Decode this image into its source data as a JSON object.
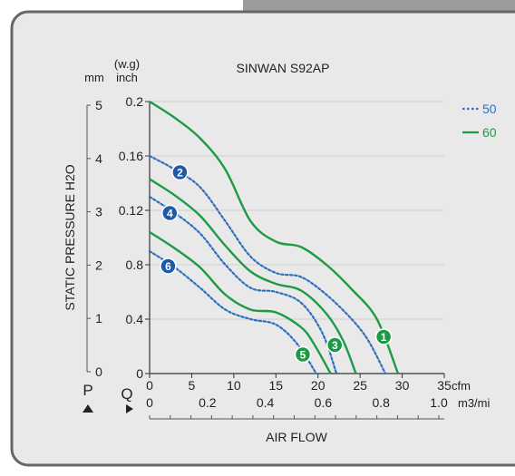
{
  "chart_data": {
    "type": "line",
    "title": "SINWAN S92AP",
    "xlabel": "AIR FLOW",
    "ylabel": "STATIC PRESSURE H2O",
    "x_unit": "cfm",
    "x_secondary_unit": "m3/mi",
    "y_unit_top": "(w.g)",
    "y_unit_left": "mm",
    "y_unit_right": "inch",
    "p_label": "P",
    "q_label": "Q",
    "xlim": [
      0,
      35
    ],
    "ylim": [
      0,
      0.2
    ],
    "x_ticks": [
      "0",
      "5",
      "10",
      "15",
      "20",
      "25",
      "30",
      "35"
    ],
    "x_secondary_ticks": [
      "0",
      "0.2",
      "0.4",
      "0.6",
      "0.8",
      "1.0"
    ],
    "y_inch_ticks": [
      "0",
      "0.4",
      "0.8",
      "0.12",
      "0.16",
      "0.2"
    ],
    "y_mm_ticks": [
      "0",
      "1",
      "2",
      "3",
      "4",
      "5"
    ],
    "grid": true,
    "legend_position": "right",
    "legend": [
      {
        "label": "50",
        "style": "dotted",
        "color": "#2e6fc0"
      },
      {
        "label": "60",
        "style": "solid",
        "color": "#1e9a46"
      }
    ],
    "series": [
      {
        "marker": "1",
        "freq": "60",
        "x": [
          0,
          3,
          6,
          9,
          12,
          15,
          18,
          21,
          24,
          27,
          29.5
        ],
        "y": [
          0.2,
          0.188,
          0.173,
          0.15,
          0.112,
          0.097,
          0.093,
          0.08,
          0.062,
          0.04,
          0.0
        ]
      },
      {
        "marker": "2",
        "freq": "50",
        "x": [
          0,
          3,
          6,
          9,
          12,
          15,
          18,
          21,
          24,
          26,
          28
        ],
        "y": [
          0.16,
          0.15,
          0.137,
          0.112,
          0.086,
          0.074,
          0.071,
          0.058,
          0.04,
          0.024,
          0.0
        ]
      },
      {
        "marker": "3",
        "freq": "60",
        "x": [
          0,
          3,
          6,
          9,
          12,
          15,
          18,
          21,
          23,
          24.5
        ],
        "y": [
          0.143,
          0.131,
          0.116,
          0.094,
          0.075,
          0.066,
          0.061,
          0.044,
          0.024,
          0.0
        ]
      },
      {
        "marker": "4",
        "freq": "50",
        "x": [
          0,
          3,
          6,
          9,
          12,
          15,
          18,
          20.5,
          22.2
        ],
        "y": [
          0.13,
          0.118,
          0.103,
          0.08,
          0.063,
          0.06,
          0.052,
          0.03,
          0.0
        ]
      },
      {
        "marker": "5",
        "freq": "60",
        "x": [
          0,
          3,
          6,
          9,
          12,
          15,
          18,
          19.5,
          21.5
        ],
        "y": [
          0.104,
          0.092,
          0.078,
          0.058,
          0.047,
          0.045,
          0.034,
          0.022,
          0.0
        ]
      },
      {
        "marker": "6",
        "freq": "50",
        "x": [
          0,
          3,
          6,
          9,
          12,
          15,
          17.5,
          19.8
        ],
        "y": [
          0.09,
          0.078,
          0.063,
          0.047,
          0.04,
          0.036,
          0.022,
          0.0
        ]
      }
    ],
    "markers": [
      {
        "label": "1",
        "color": "#1e9a46",
        "x": 27.8,
        "y": 0.027
      },
      {
        "label": "2",
        "color": "#1f5aa8",
        "x": 3.6,
        "y": 0.148
      },
      {
        "label": "3",
        "color": "#1e9a46",
        "x": 22.0,
        "y": 0.021
      },
      {
        "label": "4",
        "color": "#1f5aa8",
        "x": 2.4,
        "y": 0.118
      },
      {
        "label": "5",
        "color": "#1e9a46",
        "x": 18.2,
        "y": 0.014
      },
      {
        "label": "6",
        "color": "#1f5aa8",
        "x": 2.2,
        "y": 0.079
      }
    ]
  }
}
